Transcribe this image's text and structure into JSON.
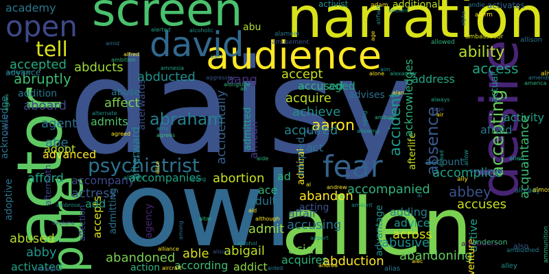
{
  "background": "#000000",
  "words": [
    {
      "text": "daisy",
      "color": "#3b528b"
    },
    {
      "text": "owl",
      "color": "#31688e"
    },
    {
      "text": "allen",
      "color": "#7ad151"
    },
    {
      "text": "narration",
      "color": "#d8e219"
    },
    {
      "text": "actor",
      "color": "#5ec962"
    },
    {
      "text": "screen",
      "color": "#4ac16d"
    },
    {
      "text": "desire",
      "color": "#482475"
    },
    {
      "text": "audience",
      "color": "#fde725"
    },
    {
      "text": "pure",
      "color": "#5ec962"
    },
    {
      "text": "david",
      "color": "#31688e"
    },
    {
      "text": "fear",
      "color": "#33638d"
    },
    {
      "text": "open",
      "color": "#3e4989"
    },
    {
      "text": "psychiatrist",
      "color": "#2c728e"
    },
    {
      "text": "tell",
      "color": "#d8e219"
    },
    {
      "text": "abraham",
      "color": "#277f8e"
    },
    {
      "text": "ability",
      "color": "#b5de2b"
    },
    {
      "text": "access",
      "color": "#20a486"
    },
    {
      "text": "abducted",
      "color": "#21918c"
    },
    {
      "text": "accepted",
      "color": "#27ad81"
    },
    {
      "text": "abducts",
      "color": "#9fda3a"
    },
    {
      "text": "abuse",
      "color": "#2a788e"
    },
    {
      "text": "aang",
      "color": "#46327e"
    },
    {
      "text": "abruptly",
      "color": "#3dbc74"
    },
    {
      "text": "aboard",
      "color": "#414487"
    },
    {
      "text": "acknowledge",
      "color": "#2a788e"
    },
    {
      "text": "accidentally",
      "color": "#355f8d"
    },
    {
      "text": "african",
      "color": "#443a83"
    },
    {
      "text": "accused",
      "color": "#2fb47c"
    },
    {
      "text": "accept",
      "color": "#cae11f"
    },
    {
      "text": "address",
      "color": "#22a884"
    },
    {
      "text": "activity",
      "color": "#1fa187"
    },
    {
      "text": "accepting",
      "color": "#65cb5e"
    },
    {
      "text": "afraid",
      "color": "#2a788e"
    },
    {
      "text": "absence",
      "color": "#38598c"
    },
    {
      "text": "accident",
      "color": "#1f988b"
    },
    {
      "text": "acquire",
      "color": "#bddf26"
    },
    {
      "text": "achieve",
      "color": "#21918c"
    },
    {
      "text": "aaron",
      "color": "#fde725"
    },
    {
      "text": "acquired",
      "color": "#25848e"
    },
    {
      "text": "admitted",
      "color": "#20a386"
    },
    {
      "text": "afterward",
      "color": "#26828e"
    },
    {
      "text": "agent",
      "color": "#2d708e"
    },
    {
      "text": "abe",
      "color": "#2a788e"
    },
    {
      "text": "adopt",
      "color": "#b5de2b"
    },
    {
      "text": "admits",
      "color": "#52c569"
    },
    {
      "text": "affect",
      "color": "#7ad151"
    },
    {
      "text": "advanced",
      "color": "#fde725"
    },
    {
      "text": "accompany",
      "color": "#3e4989"
    },
    {
      "text": "accompanies",
      "color": "#1fa187"
    },
    {
      "text": "abortion",
      "color": "#cae11f"
    },
    {
      "text": "actress",
      "color": "#38598c"
    },
    {
      "text": "afford",
      "color": "#20a486"
    },
    {
      "text": "adoptive",
      "color": "#2c728e"
    },
    {
      "text": "accomplice",
      "color": "#1fa187"
    },
    {
      "text": "abbey",
      "color": "#3b528b"
    },
    {
      "text": "acquaintance",
      "color": "#3dbc74"
    },
    {
      "text": "accuses",
      "color": "#cae11f"
    },
    {
      "text": "abandon",
      "color": "#fde725"
    },
    {
      "text": "adult",
      "color": "#2a788e"
    },
    {
      "text": "ace",
      "color": "#2fb47c"
    },
    {
      "text": "admit",
      "color": "#9fda3a"
    },
    {
      "text": "accusing",
      "color": "#2c728e"
    },
    {
      "text": "affair",
      "color": "#38598c"
    },
    {
      "text": "admiral",
      "color": "#fde725"
    },
    {
      "text": "accompanied",
      "color": "#2fb47c"
    },
    {
      "text": "advice",
      "color": "#1f988b"
    },
    {
      "text": "adding",
      "color": "#277f8e"
    },
    {
      "text": "across",
      "color": "#d8e219"
    },
    {
      "text": "active",
      "color": "#1fa187"
    },
    {
      "text": "abandoned",
      "color": "#7ad151"
    },
    {
      "text": "able",
      "color": "#d8e219"
    },
    {
      "text": "abigail",
      "color": "#bddf26"
    },
    {
      "text": "abused",
      "color": "#b5de2b"
    },
    {
      "text": "abby",
      "color": "#1f988b"
    },
    {
      "text": "activated",
      "color": "#20a486"
    },
    {
      "text": "action",
      "color": "#2fb47c"
    },
    {
      "text": "according",
      "color": "#3dbc74"
    },
    {
      "text": "addict",
      "color": "#8fd744"
    },
    {
      "text": "acquires",
      "color": "#2fb47c"
    },
    {
      "text": "abduction",
      "color": "#fde725"
    },
    {
      "text": "abusive",
      "color": "#21918c"
    },
    {
      "text": "abandoning",
      "color": "#65cb5e"
    },
    {
      "text": "acid",
      "color": "#7ad151"
    },
    {
      "text": "accepts",
      "color": "#d8e219"
    },
    {
      "text": "add",
      "color": "#20a386"
    },
    {
      "text": "academy",
      "color": "#2a788e"
    },
    {
      "text": "activist",
      "color": "#21918c"
    },
    {
      "text": "additional",
      "color": "#bddf26"
    },
    {
      "text": "activates",
      "color": "#33638d"
    },
    {
      "text": "abu",
      "color": "#b5de2b"
    },
    {
      "text": "advance",
      "color": "#2c728e"
    },
    {
      "text": "addition",
      "color": "#2a788e"
    },
    {
      "text": "adventure",
      "color": "#fde725"
    },
    {
      "text": "advantage",
      "color": "#21918c"
    },
    {
      "text": "afterlife",
      "color": "#cae11f"
    },
    {
      "text": "acknowledges",
      "color": "#2fb47c"
    },
    {
      "text": "account",
      "color": "#2c728e"
    },
    {
      "text": "act",
      "color": "#2a788e"
    },
    {
      "text": "ad",
      "color": "#2fb47c"
    },
    {
      "text": "aged",
      "color": "#20a486"
    },
    {
      "text": "advises",
      "color": "#2d708e"
    },
    {
      "text": "actual",
      "color": "#21918c"
    },
    {
      "text": "agency",
      "color": "#482475"
    },
    {
      "text": "admitting",
      "color": "#2c728e"
    },
    {
      "text": "acting",
      "color": "#3b528b"
    },
    {
      "text": "afterwards",
      "color": "#3b528b"
    },
    {
      "text": "affection",
      "color": "#3e4989"
    },
    {
      "text": "adopted",
      "color": "#2c728e"
    },
    {
      "text": "aftermath",
      "color": "#3e4989"
    },
    {
      "text": "ambulance",
      "color": "#440154"
    },
    {
      "text": "andie",
      "color": "#2a788e"
    },
    {
      "text": "ancient",
      "color": "#21918c"
    },
    {
      "text": "alarm",
      "color": "#fde725"
    },
    {
      "text": "adam",
      "color": "#fde725"
    },
    {
      "text": "alerted",
      "color": "#1fa187"
    },
    {
      "text": "alcoholic",
      "color": "#21918c"
    },
    {
      "text": "alfred",
      "color": "#fde725"
    },
    {
      "text": "amusement",
      "color": "#3b528b"
    },
    {
      "text": "airfield",
      "color": "#21918c"
    },
    {
      "text": "alamein",
      "color": "#2a788e"
    },
    {
      "text": "allowed",
      "color": "#2fb47c"
    },
    {
      "text": "ambassador",
      "color": "#d8e219"
    },
    {
      "text": "allison",
      "color": "#2c728e"
    },
    {
      "text": "alpha",
      "color": "#2c728e"
    },
    {
      "text": "alive",
      "color": "#fde725"
    },
    {
      "text": "already",
      "color": "#277f8e"
    },
    {
      "text": "almost",
      "color": "#fde725"
    },
    {
      "text": "anderson",
      "color": "#3dbc74"
    },
    {
      "text": "also",
      "color": "#38598c"
    },
    {
      "text": "ammunition",
      "color": "#2fb47c"
    },
    {
      "text": "ambushed",
      "color": "#277f8e"
    },
    {
      "text": "ahead",
      "color": "#1fa187"
    },
    {
      "text": "agreement",
      "color": "#3b528b"
    },
    {
      "text": "ally",
      "color": "#fde725"
    },
    {
      "text": "allow",
      "color": "#21918c"
    },
    {
      "text": "alien",
      "color": "#20a486"
    },
    {
      "text": "agreeing",
      "color": "#3b528b"
    },
    {
      "text": "allowing",
      "color": "#1fa187"
    },
    {
      "text": "alone",
      "color": "#fde725"
    },
    {
      "text": "alexander",
      "color": "#20a486"
    },
    {
      "text": "aging",
      "color": "#21918c"
    },
    {
      "text": "alan",
      "color": "#fde725"
    },
    {
      "text": "always",
      "color": "#20a486"
    },
    {
      "text": "ago",
      "color": "#3b528b"
    },
    {
      "text": "air",
      "color": "#fde725"
    },
    {
      "text": "ambush",
      "color": "#2fb47c"
    },
    {
      "text": "aim",
      "color": "#21918c"
    },
    {
      "text": "ah",
      "color": "#2fb47c"
    },
    {
      "text": "alongside",
      "color": "#2fb47c"
    },
    {
      "text": "aggressive",
      "color": "#3b528b"
    },
    {
      "text": "amnesia",
      "color": "#20a486"
    },
    {
      "text": "alert",
      "color": "#2a788e"
    },
    {
      "text": "american",
      "color": "#21918c"
    },
    {
      "text": "amid",
      "color": "#2c728e"
    },
    {
      "text": "ambition",
      "color": "#2fb47c"
    },
    {
      "text": "allows",
      "color": "#2fb47c"
    },
    {
      "text": "alternate",
      "color": "#21918c"
    },
    {
      "text": "agreed",
      "color": "#fde725"
    },
    {
      "text": "amy",
      "color": "#21918c"
    },
    {
      "text": "agrees",
      "color": "#3dbc74"
    },
    {
      "text": "android",
      "color": "#3b528b"
    },
    {
      "text": "amulet",
      "color": "#2c728e"
    },
    {
      "text": "albright",
      "color": "#20a486"
    },
    {
      "text": "aide",
      "color": "#2fb47c"
    },
    {
      "text": "alice",
      "color": "#fde725"
    },
    {
      "text": "along",
      "color": "#21918c"
    },
    {
      "text": "al",
      "color": "#fde725"
    },
    {
      "text": "andrew",
      "color": "#fde725"
    },
    {
      "text": "ai",
      "color": "#2c728e"
    },
    {
      "text": "amount",
      "color": "#21918c"
    },
    {
      "text": "ambrose",
      "color": "#21918c"
    },
    {
      "text": "airplane",
      "color": "#3b528b"
    },
    {
      "text": "aid",
      "color": "#fde725"
    },
    {
      "text": "although",
      "color": "#fde725"
    },
    {
      "text": "altar",
      "color": "#2fb47c"
    },
    {
      "text": "among",
      "color": "#2c728e"
    },
    {
      "text": "airport",
      "color": "#21918c"
    },
    {
      "text": "alcohol",
      "color": "#21918c"
    },
    {
      "text": "alliance",
      "color": "#fde725"
    },
    {
      "text": "alison",
      "color": "#3b528b"
    },
    {
      "text": "amongst",
      "color": "#3b528b"
    },
    {
      "text": "aircraft",
      "color": "#fde725"
    },
    {
      "text": "aided",
      "color": "#2a788e"
    },
    {
      "text": "alias",
      "color": "#2a788e"
    },
    {
      "text": "andrea",
      "color": "#fde725"
    },
    {
      "text": "alec",
      "color": "#fde725"
    },
    {
      "text": "alley",
      "color": "#21918c"
    },
    {
      "text": "amends",
      "color": "#2a788e"
    },
    {
      "text": "america",
      "color": "#2fb47c"
    },
    {
      "text": "age",
      "color": "#fde725"
    }
  ]
}
